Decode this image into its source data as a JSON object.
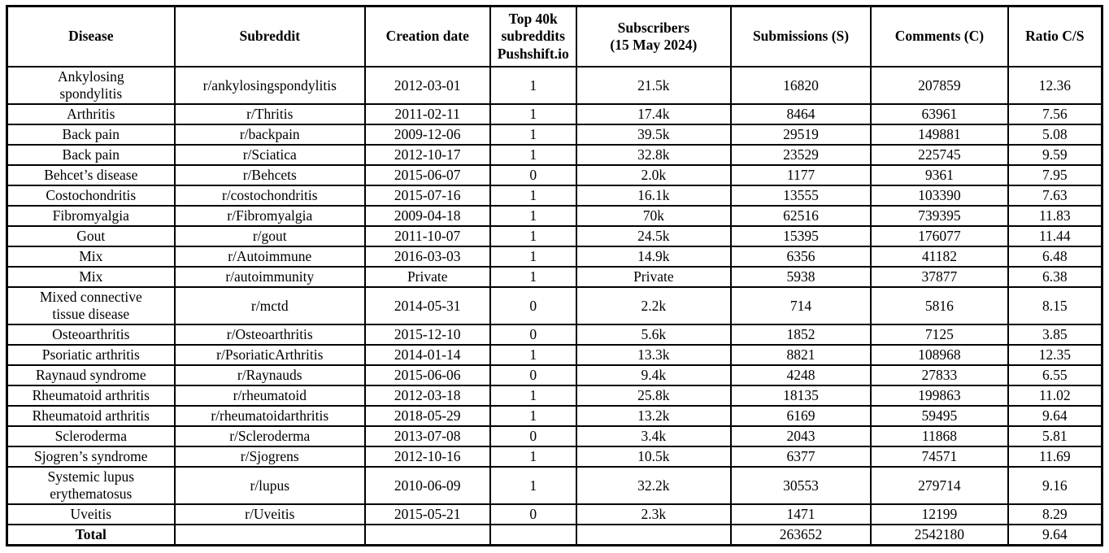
{
  "page": {
    "background": "#ffffff",
    "text_color": "#000000",
    "border_color": "#000000"
  },
  "table": {
    "columns": [
      {
        "key": "disease",
        "label": "Disease"
      },
      {
        "key": "subreddit",
        "label": "Subreddit"
      },
      {
        "key": "creation_date",
        "label": "Creation date"
      },
      {
        "key": "top40k",
        "label": "Top 40k\nsubreddits\nPushshift.io"
      },
      {
        "key": "subscribers",
        "label": "Subscribers\n(15 May 2024)"
      },
      {
        "key": "submissions",
        "label": "Submissions (S)"
      },
      {
        "key": "comments",
        "label": "Comments (C)"
      },
      {
        "key": "ratio",
        "label": "Ratio C/S"
      }
    ],
    "rows": [
      {
        "disease": "Ankylosing\nspondylitis",
        "subreddit": "r/ankylosingspondylitis",
        "creation_date": "2012-03-01",
        "top40k": "1",
        "subscribers": "21.5k",
        "submissions": "16820",
        "comments": "207859",
        "ratio": "12.36"
      },
      {
        "disease": "Arthritis",
        "subreddit": "r/Thritis",
        "creation_date": "2011-02-11",
        "top40k": "1",
        "subscribers": "17.4k",
        "submissions": "8464",
        "comments": "63961",
        "ratio": "7.56"
      },
      {
        "disease": "Back pain",
        "subreddit": "r/backpain",
        "creation_date": "2009-12-06",
        "top40k": "1",
        "subscribers": "39.5k",
        "submissions": "29519",
        "comments": "149881",
        "ratio": "5.08"
      },
      {
        "disease": "Back pain",
        "subreddit": "r/Sciatica",
        "creation_date": "2012-10-17",
        "top40k": "1",
        "subscribers": "32.8k",
        "submissions": "23529",
        "comments": "225745",
        "ratio": "9.59"
      },
      {
        "disease": "Behcet’s disease",
        "subreddit": "r/Behcets",
        "creation_date": "2015-06-07",
        "top40k": "0",
        "subscribers": "2.0k",
        "submissions": "1177",
        "comments": "9361",
        "ratio": "7.95"
      },
      {
        "disease": "Costochondritis",
        "subreddit": "r/costochondritis",
        "creation_date": "2015-07-16",
        "top40k": "1",
        "subscribers": "16.1k",
        "submissions": "13555",
        "comments": "103390",
        "ratio": "7.63"
      },
      {
        "disease": "Fibromyalgia",
        "subreddit": "r/Fibromyalgia",
        "creation_date": "2009-04-18",
        "top40k": "1",
        "subscribers": "70k",
        "submissions": "62516",
        "comments": "739395",
        "ratio": "11.83"
      },
      {
        "disease": "Gout",
        "subreddit": "r/gout",
        "creation_date": "2011-10-07",
        "top40k": "1",
        "subscribers": "24.5k",
        "submissions": "15395",
        "comments": "176077",
        "ratio": "11.44"
      },
      {
        "disease": "Mix",
        "subreddit": "r/Autoimmune",
        "creation_date": "2016-03-03",
        "top40k": "1",
        "subscribers": "14.9k",
        "submissions": "6356",
        "comments": "41182",
        "ratio": "6.48"
      },
      {
        "disease": "Mix",
        "subreddit": "r/autoimmunity",
        "creation_date": "Private",
        "top40k": "1",
        "subscribers": "Private",
        "submissions": "5938",
        "comments": "37877",
        "ratio": "6.38"
      },
      {
        "disease": "Mixed connective\ntissue disease",
        "subreddit": "r/mctd",
        "creation_date": "2014-05-31",
        "top40k": "0",
        "subscribers": "2.2k",
        "submissions": "714",
        "comments": "5816",
        "ratio": "8.15"
      },
      {
        "disease": "Osteoarthritis",
        "subreddit": "r/Osteoarthritis",
        "creation_date": "2015-12-10",
        "top40k": "0",
        "subscribers": "5.6k",
        "submissions": "1852",
        "comments": "7125",
        "ratio": "3.85"
      },
      {
        "disease": "Psoriatic arthritis",
        "subreddit": "r/PsoriaticArthritis",
        "creation_date": "2014-01-14",
        "top40k": "1",
        "subscribers": "13.3k",
        "submissions": "8821",
        "comments": "108968",
        "ratio": "12.35"
      },
      {
        "disease": "Raynaud syndrome",
        "subreddit": "r/Raynauds",
        "creation_date": "2015-06-06",
        "top40k": "0",
        "subscribers": "9.4k",
        "submissions": "4248",
        "comments": "27833",
        "ratio": "6.55"
      },
      {
        "disease": "Rheumatoid arthritis",
        "subreddit": "r/rheumatoid",
        "creation_date": "2012-03-18",
        "top40k": "1",
        "subscribers": "25.8k",
        "submissions": "18135",
        "comments": "199863",
        "ratio": "11.02"
      },
      {
        "disease": "Rheumatoid arthritis",
        "subreddit": "r/rheumatoidarthritis",
        "creation_date": "2018-05-29",
        "top40k": "1",
        "subscribers": "13.2k",
        "submissions": "6169",
        "comments": "59495",
        "ratio": "9.64"
      },
      {
        "disease": "Scleroderma",
        "subreddit": "r/Scleroderma",
        "creation_date": "2013-07-08",
        "top40k": "0",
        "subscribers": "3.4k",
        "submissions": "2043",
        "comments": "11868",
        "ratio": "5.81"
      },
      {
        "disease": "Sjogren’s syndrome",
        "subreddit": "r/Sjogrens",
        "creation_date": "2012-10-16",
        "top40k": "1",
        "subscribers": "10.5k",
        "submissions": "6377",
        "comments": "74571",
        "ratio": "11.69"
      },
      {
        "disease": "Systemic lupus\nerythematosus",
        "subreddit": "r/lupus",
        "creation_date": "2010-06-09",
        "top40k": "1",
        "subscribers": "32.2k",
        "submissions": "30553",
        "comments": "279714",
        "ratio": "9.16"
      },
      {
        "disease": "Uveitis",
        "subreddit": "r/Uveitis",
        "creation_date": "2015-05-21",
        "top40k": "0",
        "subscribers": "2.3k",
        "submissions": "1471",
        "comments": "12199",
        "ratio": "8.29"
      },
      {
        "disease": "Total",
        "subreddit": "",
        "creation_date": "",
        "top40k": "",
        "subscribers": "",
        "submissions": "263652",
        "comments": "2542180",
        "ratio": "9.64",
        "is_total": true
      }
    ]
  }
}
